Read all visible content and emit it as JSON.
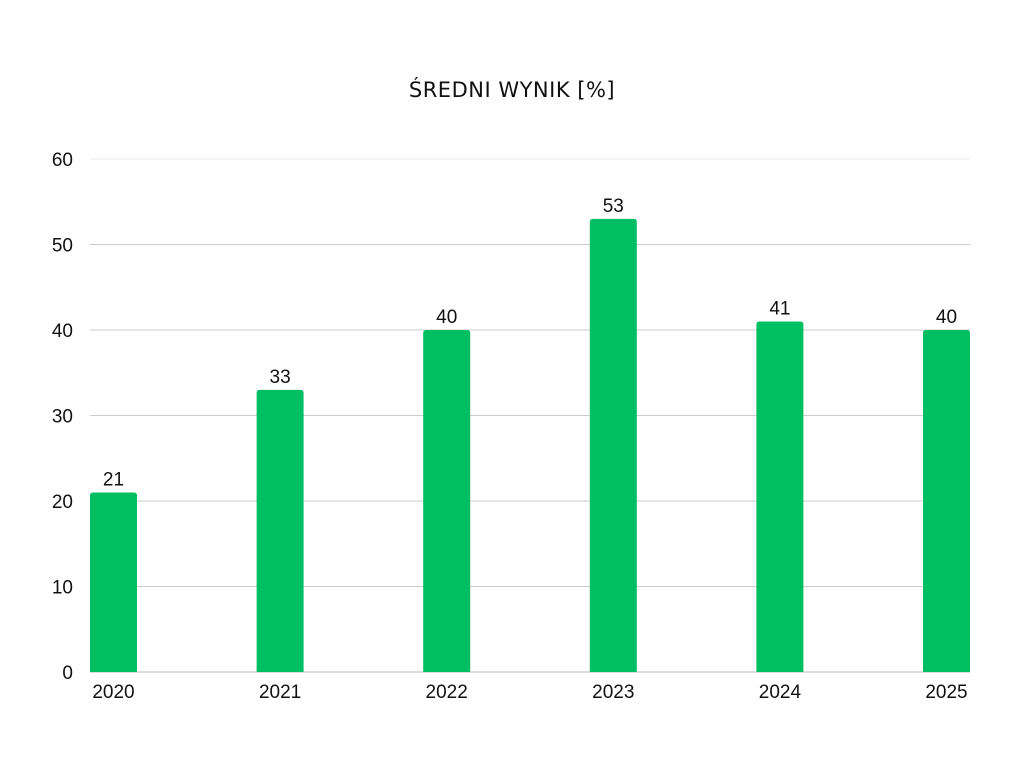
{
  "chart_data": {
    "type": "bar",
    "title": "ŚREDNI WYNIK [%]",
    "xlabel": "",
    "ylabel": "",
    "categories": [
      "2020",
      "2021",
      "2022",
      "2023",
      "2024",
      "2025"
    ],
    "values": [
      21,
      33,
      40,
      53,
      41,
      40
    ],
    "ylim": [
      0,
      60
    ],
    "yticks": [
      0,
      10,
      20,
      30,
      40,
      50,
      60
    ],
    "grid": true,
    "legend": "none",
    "colors": {
      "bar": "#00BF63",
      "grid": "#CCCCCC",
      "text": "#111111"
    }
  }
}
